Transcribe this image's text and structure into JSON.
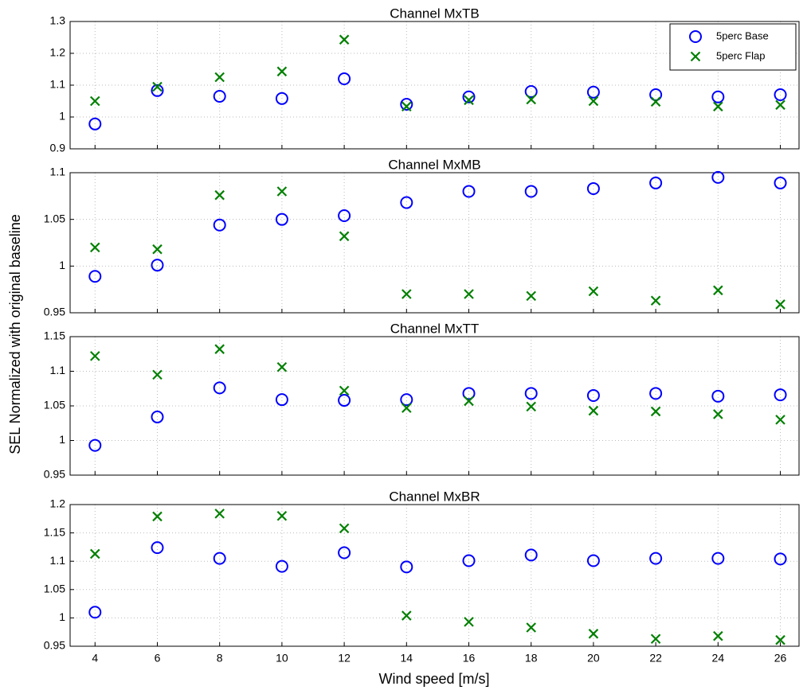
{
  "ylabel": "SEL Normalized with original baseline",
  "xlabel": "Wind speed [m/s]",
  "chart_data": [
    {
      "type": "scatter",
      "title": "Channel MxTB",
      "legend": "upper right",
      "grid": true,
      "x": [
        4,
        6,
        8,
        10,
        12,
        14,
        16,
        18,
        20,
        22,
        24,
        26
      ],
      "xlim": [
        3.2,
        26.6
      ],
      "xticks": [
        4,
        6,
        8,
        10,
        12,
        14,
        16,
        18,
        20,
        22,
        24,
        26
      ],
      "ylim": [
        0.9,
        1.3
      ],
      "yticks": [
        0.9,
        1,
        1.1,
        1.2,
        1.3
      ],
      "series": [
        {
          "name": "5perc Base",
          "color": "#0000ff",
          "marker": "o",
          "values": [
            0.978,
            1.083,
            1.065,
            1.058,
            1.12,
            1.04,
            1.063,
            1.08,
            1.078,
            1.07,
            1.063,
            1.07
          ]
        },
        {
          "name": "5perc Flap",
          "color": "#008000",
          "marker": "x",
          "values": [
            1.05,
            1.095,
            1.125,
            1.143,
            1.243,
            1.033,
            1.053,
            1.055,
            1.05,
            1.048,
            1.033,
            1.038
          ]
        }
      ]
    },
    {
      "type": "scatter",
      "title": "Channel MxMB",
      "grid": true,
      "x": [
        4,
        6,
        8,
        10,
        12,
        14,
        16,
        18,
        20,
        22,
        24,
        26
      ],
      "xlim": [
        3.2,
        26.6
      ],
      "xticks": [
        4,
        6,
        8,
        10,
        12,
        14,
        16,
        18,
        20,
        22,
        24,
        26
      ],
      "ylim": [
        0.95,
        1.1
      ],
      "yticks": [
        0.95,
        1,
        1.05,
        1.1
      ],
      "series": [
        {
          "color": "#0000ff",
          "marker": "o",
          "values": [
            0.989,
            1.001,
            1.044,
            1.05,
            1.054,
            1.068,
            1.08,
            1.08,
            1.083,
            1.089,
            1.095,
            1.089
          ]
        },
        {
          "color": "#008000",
          "marker": "x",
          "values": [
            1.02,
            1.018,
            1.076,
            1.08,
            1.032,
            0.97,
            0.97,
            0.968,
            0.973,
            0.963,
            0.974,
            0.959
          ]
        }
      ]
    },
    {
      "type": "scatter",
      "title": "Channel MxTT",
      "grid": true,
      "x": [
        4,
        6,
        8,
        10,
        12,
        14,
        16,
        18,
        20,
        22,
        24,
        26
      ],
      "xlim": [
        3.2,
        26.6
      ],
      "xticks": [
        4,
        6,
        8,
        10,
        12,
        14,
        16,
        18,
        20,
        22,
        24,
        26
      ],
      "ylim": [
        0.95,
        1.15
      ],
      "yticks": [
        0.95,
        1,
        1.05,
        1.1,
        1.15
      ],
      "series": [
        {
          "color": "#0000ff",
          "marker": "o",
          "values": [
            0.993,
            1.034,
            1.076,
            1.059,
            1.058,
            1.059,
            1.068,
            1.068,
            1.065,
            1.068,
            1.064,
            1.066
          ]
        },
        {
          "color": "#008000",
          "marker": "x",
          "values": [
            1.122,
            1.095,
            1.132,
            1.106,
            1.072,
            1.047,
            1.057,
            1.049,
            1.043,
            1.042,
            1.038,
            1.03
          ]
        }
      ]
    },
    {
      "type": "scatter",
      "title": "Channel MxBR",
      "grid": true,
      "x": [
        4,
        6,
        8,
        10,
        12,
        14,
        16,
        18,
        20,
        22,
        24,
        26
      ],
      "xlim": [
        3.2,
        26.6
      ],
      "xticks": [
        4,
        6,
        8,
        10,
        12,
        14,
        16,
        18,
        20,
        22,
        24,
        26
      ],
      "xticklabels": true,
      "ylim": [
        0.95,
        1.2
      ],
      "yticks": [
        0.95,
        1,
        1.05,
        1.1,
        1.15,
        1.2
      ],
      "series": [
        {
          "color": "#0000ff",
          "marker": "o",
          "values": [
            1.01,
            1.124,
            1.105,
            1.091,
            1.115,
            1.09,
            1.101,
            1.111,
            1.101,
            1.105,
            1.105,
            1.104
          ]
        },
        {
          "color": "#008000",
          "marker": "x",
          "values": [
            1.113,
            1.179,
            1.184,
            1.18,
            1.158,
            1.004,
            0.993,
            0.983,
            0.972,
            0.963,
            0.968,
            0.961
          ]
        }
      ]
    }
  ]
}
